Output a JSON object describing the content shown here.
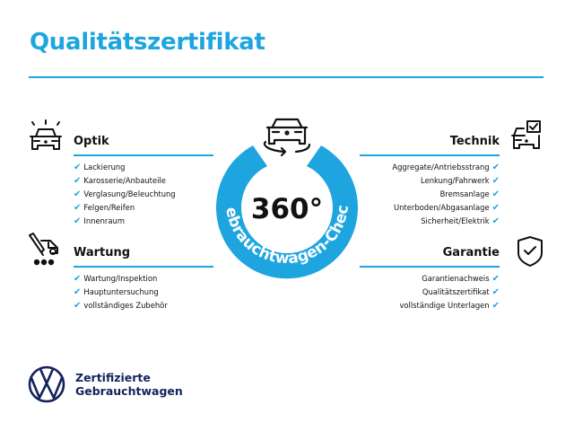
{
  "title": "Qualitätszertifikat",
  "badge": {
    "value": "360°",
    "ring_text": "Gebrauchtwagen-Check",
    "color": "#1ea5e0"
  },
  "sections": {
    "optik": {
      "heading": "Optik",
      "icon": "car-lights-icon",
      "items": [
        "Lackierung",
        "Karosserie/Anbauteile",
        "Verglasung/Beleuchtung",
        "Felgen/Reifen",
        "Innenraum"
      ]
    },
    "wartung": {
      "heading": "Wartung",
      "icon": "service-car-icon",
      "items": [
        "Wartung/Inspektion",
        "Hauptuntersuchung",
        "vollständiges Zubehör"
      ]
    },
    "technik": {
      "heading": "Technik",
      "icon": "car-checkbox-icon",
      "items": [
        "Aggregate/Antriebsstrang",
        "Lenkung/Fahrwerk",
        "Bremsanlage",
        "Unterboden/Abgasanlage",
        "Sicherheit/Elektrik"
      ]
    },
    "garantie": {
      "heading": "Garantie",
      "icon": "shield-check-icon",
      "items": [
        "Garantienachweis",
        "Qualitätszertifikat",
        "vollständige Unterlagen"
      ]
    }
  },
  "check_mark": "✔",
  "brand": {
    "line1": "Zertifizierte",
    "line2": "Gebrauchtwagen",
    "logo": "vw-logo",
    "color": "#13235b"
  }
}
